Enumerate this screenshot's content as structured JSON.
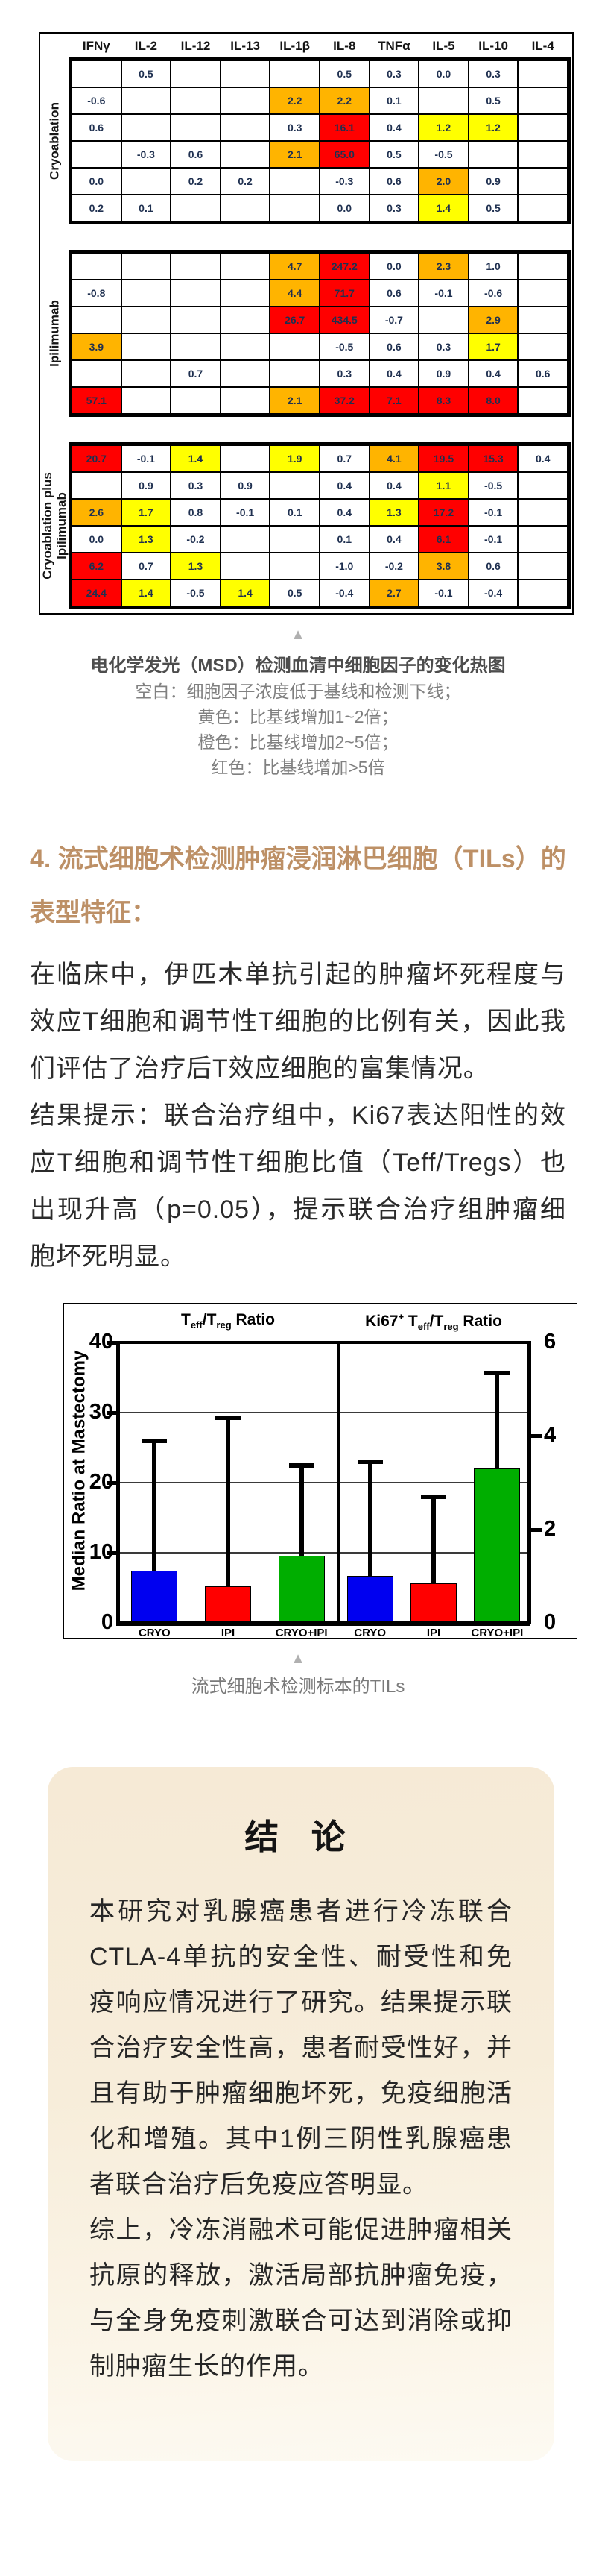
{
  "heatmap": {
    "columns": [
      "IFNγ",
      "IL-2",
      "IL-12",
      "IL-13",
      "IL-1β",
      "IL-8",
      "TNFα",
      "IL-5",
      "IL-10",
      "IL-4"
    ],
    "legend_colors": {
      "y": "#FFFF00",
      "o": "#FFB400",
      "r": "#FF0000",
      "blank": "#FFFFFF"
    },
    "groups": [
      {
        "label": "Cryoablation",
        "rows": [
          [
            null,
            [
              "0.5",
              ""
            ],
            null,
            null,
            null,
            [
              "0.5",
              ""
            ],
            [
              "0.3",
              ""
            ],
            [
              "0.0",
              ""
            ],
            [
              "0.3",
              ""
            ],
            null
          ],
          [
            [
              "-0.6",
              ""
            ],
            null,
            null,
            null,
            [
              "2.2",
              "o"
            ],
            [
              "2.2",
              "o"
            ],
            [
              "0.1",
              ""
            ],
            null,
            [
              "0.5",
              ""
            ],
            null
          ],
          [
            [
              "0.6",
              ""
            ],
            null,
            null,
            null,
            [
              "0.3",
              ""
            ],
            [
              "16.1",
              "r"
            ],
            [
              "0.4",
              ""
            ],
            [
              "1.2",
              "y"
            ],
            [
              "1.2",
              "y"
            ],
            null
          ],
          [
            null,
            [
              "-0.3",
              ""
            ],
            [
              "0.6",
              ""
            ],
            null,
            [
              "2.1",
              "o"
            ],
            [
              "65.0",
              "r"
            ],
            [
              "0.5",
              ""
            ],
            [
              "-0.5",
              ""
            ],
            null,
            null
          ],
          [
            [
              "0.0",
              ""
            ],
            null,
            [
              "0.2",
              ""
            ],
            [
              "0.2",
              ""
            ],
            null,
            [
              "-0.3",
              ""
            ],
            [
              "0.6",
              ""
            ],
            [
              "2.0",
              "o"
            ],
            [
              "0.9",
              ""
            ],
            null
          ],
          [
            [
              "0.2",
              ""
            ],
            [
              "0.1",
              ""
            ],
            null,
            null,
            null,
            [
              "0.0",
              ""
            ],
            [
              "0.3",
              ""
            ],
            [
              "1.4",
              "y"
            ],
            [
              "0.5",
              ""
            ],
            null
          ]
        ]
      },
      {
        "label": "Ipilimumab",
        "rows": [
          [
            null,
            null,
            null,
            null,
            [
              "4.7",
              "o"
            ],
            [
              "247.2",
              "r"
            ],
            [
              "0.0",
              ""
            ],
            [
              "2.3",
              "o"
            ],
            [
              "1.0",
              ""
            ],
            null
          ],
          [
            [
              "-0.8",
              ""
            ],
            null,
            null,
            null,
            [
              "4.4",
              "o"
            ],
            [
              "71.7",
              "r"
            ],
            [
              "0.6",
              ""
            ],
            [
              "-0.1",
              ""
            ],
            [
              "-0.6",
              ""
            ],
            null
          ],
          [
            null,
            null,
            null,
            null,
            [
              "26.7",
              "r"
            ],
            [
              "434.5",
              "r"
            ],
            [
              "-0.7",
              ""
            ],
            null,
            [
              "2.9",
              "o"
            ],
            null
          ],
          [
            [
              "3.9",
              "o"
            ],
            null,
            null,
            null,
            null,
            [
              "-0.5",
              ""
            ],
            [
              "0.6",
              ""
            ],
            [
              "0.3",
              ""
            ],
            [
              "1.7",
              "y"
            ],
            null
          ],
          [
            null,
            null,
            [
              "0.7",
              ""
            ],
            null,
            null,
            [
              "0.3",
              ""
            ],
            [
              "0.4",
              ""
            ],
            [
              "0.9",
              ""
            ],
            [
              "0.4",
              ""
            ],
            [
              "0.6",
              ""
            ]
          ],
          [
            [
              "57.1",
              "r"
            ],
            null,
            null,
            null,
            [
              "2.1",
              "o"
            ],
            [
              "37.2",
              "r"
            ],
            [
              "7.1",
              "r"
            ],
            [
              "8.3",
              "r"
            ],
            [
              "8.0",
              "r"
            ],
            null
          ]
        ]
      },
      {
        "label": "Cryoablation plus\nIpilimumab",
        "rows": [
          [
            [
              "20.7",
              "r"
            ],
            [
              "-0.1",
              ""
            ],
            [
              "1.4",
              "y"
            ],
            null,
            [
              "1.9",
              "y"
            ],
            [
              "0.7",
              ""
            ],
            [
              "4.1",
              "o"
            ],
            [
              "19.5",
              "r"
            ],
            [
              "15.3",
              "r"
            ],
            [
              "0.4",
              ""
            ]
          ],
          [
            null,
            [
              "0.9",
              ""
            ],
            [
              "0.3",
              ""
            ],
            [
              "0.9",
              ""
            ],
            null,
            [
              "0.4",
              ""
            ],
            [
              "0.4",
              ""
            ],
            [
              "1.1",
              "y"
            ],
            [
              "-0.5",
              ""
            ],
            null
          ],
          [
            [
              "2.6",
              "o"
            ],
            [
              "1.7",
              "y"
            ],
            [
              "0.8",
              ""
            ],
            [
              "-0.1",
              ""
            ],
            [
              "0.1",
              ""
            ],
            [
              "0.4",
              ""
            ],
            [
              "1.3",
              "y"
            ],
            [
              "17.2",
              "r"
            ],
            [
              "-0.1",
              ""
            ],
            null
          ],
          [
            [
              "0.0",
              ""
            ],
            [
              "1.3",
              "y"
            ],
            [
              "-0.2",
              ""
            ],
            null,
            null,
            [
              "0.1",
              ""
            ],
            [
              "0.4",
              ""
            ],
            [
              "6.1",
              "r"
            ],
            [
              "-0.1",
              ""
            ],
            null
          ],
          [
            [
              "6.2",
              "r"
            ],
            [
              "0.7",
              ""
            ],
            [
              "1.3",
              "y"
            ],
            null,
            null,
            [
              "-1.0",
              ""
            ],
            [
              "-0.2",
              ""
            ],
            [
              "3.8",
              "o"
            ],
            [
              "0.6",
              ""
            ],
            null
          ],
          [
            [
              "24.4",
              "r"
            ],
            [
              "1.4",
              "y"
            ],
            [
              "-0.5",
              ""
            ],
            [
              "1.4",
              "y"
            ],
            [
              "0.5",
              ""
            ],
            [
              "-0.4",
              ""
            ],
            [
              "2.7",
              "o"
            ],
            [
              "-0.1",
              ""
            ],
            [
              "-0.4",
              ""
            ],
            null
          ]
        ]
      }
    ]
  },
  "figure1_caption": {
    "marker": "▲",
    "title": "电化学发光（MSD）检测血清中细胞因子的变化热图",
    "lines": [
      "空白：细胞因子浓度低于基线和检测下线；",
      "黄色：比基线增加1~2倍；",
      "橙色：比基线增加2~5倍；",
      "红色：比基线增加>5倍"
    ]
  },
  "section4": {
    "heading": "4. 流式细胞术检测肿瘤浸润淋巴细胞（TILs）的表型特征：",
    "heading_color": "#BD9066",
    "paragraphs": [
      "在临床中，伊匹木单抗引起的肿瘤坏死程度与效应T细胞和调节性T细胞的比例有关，因此我们评估了治疗后T效应细胞的富集情况。",
      "结果提示：联合治疗组中，Ki67表达阳性的效应T细胞和调节性T细胞比值（Teff/Tregs）也出现升高（p=0.05），提示联合治疗组肿瘤细胞坏死明显。"
    ]
  },
  "chart_data": {
    "type": "bar",
    "ylabel": "Median Ratio at Mastectomy",
    "x_categories": [
      "CRYO",
      "IPI",
      "CRYO+IPI"
    ],
    "bar_colors": [
      "#0000F0",
      "#FF0000",
      "#00AE00"
    ],
    "left_axis": {
      "ylim": [
        0,
        40
      ],
      "ticks": [
        0,
        10,
        20,
        30,
        40
      ]
    },
    "right_axis": {
      "ylim": [
        0,
        6
      ],
      "ticks": [
        0,
        2,
        4,
        6
      ]
    },
    "gridlines_left_units": [
      10,
      20,
      30
    ],
    "panels": [
      {
        "title_plain": "Teff/Treg Ratio",
        "title_rich": [
          {
            "t": "T"
          },
          {
            "sub": "eff"
          },
          {
            "t": "/T"
          },
          {
            "sub": "reg"
          },
          {
            "t": " Ratio"
          }
        ],
        "axis": "left",
        "values": [
          7.4,
          5.2,
          9.6
        ],
        "error_tops": [
          26,
          29.3,
          22.4
        ]
      },
      {
        "title_plain": "Ki67+ Teff/Treg Ratio",
        "title_rich": [
          {
            "t": "Ki67"
          },
          {
            "sup": "+"
          },
          {
            "t": " T"
          },
          {
            "sub": "eff"
          },
          {
            "t": "/T"
          },
          {
            "sub": "reg"
          },
          {
            "t": " Ratio"
          }
        ],
        "axis": "right",
        "values": [
          1.0,
          0.85,
          3.3
        ],
        "error_tops": [
          3.45,
          2.7,
          5.35
        ]
      }
    ]
  },
  "figure2_caption": {
    "marker": "▲",
    "text": "流式细胞术检测标本的TILs"
  },
  "conclusion": {
    "title": "结  论",
    "paragraphs": [
      "本研究对乳腺癌患者进行冷冻联合CTLA-4单抗的安全性、耐受性和免疫响应情况进行了研究。结果提示联合治疗安全性高，患者耐受性好，并且有助于肿瘤细胞坏死，免疫细胞活化和增殖。其中1例三阴性乳腺癌患者联合治疗后免疫应答明显。",
      "综上，冷冻消融术可能促进肿瘤相关抗原的释放，激活局部抗肿瘤免疫，与全身免疫刺激联合可达到消除或抑制肿瘤生长的作用。"
    ]
  }
}
